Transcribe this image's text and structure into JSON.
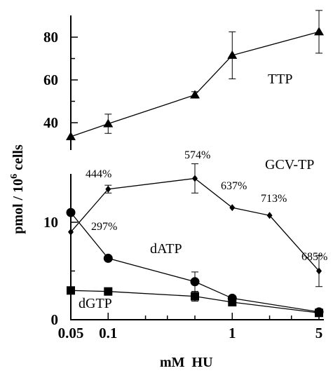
{
  "chart_data": {
    "type": "line",
    "title": "",
    "xlabel": "mM  HU",
    "ylabel": "pmol / 10",
    "ylabel_superscript": "6",
    "ylabel_suffix": " cells",
    "xscale": "log",
    "xlim": [
      0.05,
      5
    ],
    "x_ticks": [
      0.05,
      0.1,
      1,
      5
    ],
    "x_tick_labels": [
      "0.05",
      "0.1",
      "1",
      "5"
    ],
    "y_axis_break": true,
    "upper_panel": {
      "ylim": [
        30,
        90
      ],
      "y_ticks": [
        40,
        60,
        80
      ],
      "y_tick_labels": [
        "40",
        "60",
        "80"
      ]
    },
    "lower_panel": {
      "ylim": [
        0,
        15
      ],
      "y_ticks": [
        0,
        10
      ],
      "y_tick_labels": [
        "0",
        "10"
      ]
    },
    "series": [
      {
        "name": "TTP",
        "panel": "upper",
        "marker": "triangle",
        "x": [
          0.05,
          0.1,
          0.5,
          1,
          5
        ],
        "y": [
          33.5,
          39.5,
          53,
          71.5,
          82.5
        ],
        "err": [
          0,
          4.5,
          1.5,
          11,
          10
        ]
      },
      {
        "name": "GCV-TP",
        "panel": "lower",
        "marker": "diamond",
        "x": [
          0.05,
          0.1,
          0.5,
          1,
          2,
          5
        ],
        "y": [
          9,
          13.4,
          14.5,
          11.5,
          10.7,
          5
        ],
        "err": [
          0,
          0.4,
          1.5,
          0,
          0,
          1.6
        ]
      },
      {
        "name": "dATP",
        "panel": "lower",
        "marker": "circle",
        "x": [
          0.05,
          0.1,
          0.5,
          1,
          5
        ],
        "y": [
          11,
          6.3,
          3.9,
          2.2,
          0.8
        ],
        "err": [
          0,
          0,
          1.0,
          0,
          0
        ]
      },
      {
        "name": "dGTP",
        "panel": "lower",
        "marker": "square",
        "x": [
          0.05,
          0.1,
          0.5,
          1,
          5
        ],
        "y": [
          3,
          2.9,
          2.4,
          1.8,
          0.7
        ],
        "err": [
          0,
          0,
          0.5,
          0,
          0
        ]
      }
    ],
    "annotations": [
      "444%",
      "297%",
      "574%",
      "637%",
      "713%",
      "685%"
    ]
  }
}
